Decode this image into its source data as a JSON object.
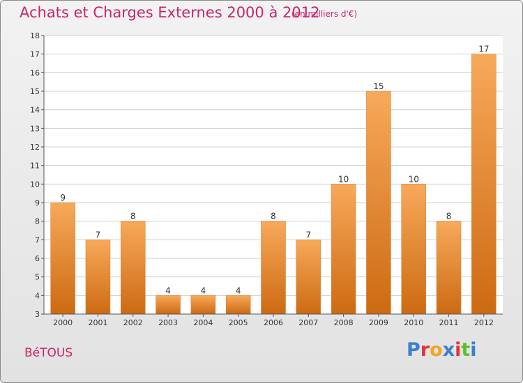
{
  "header": {
    "title": "Achats et Charges Externes 2000 à 2012",
    "subtitle": "(en milliers d'€)"
  },
  "footer": {
    "place": "BéTOUS",
    "brand": "Proxiti",
    "brand_colors": [
      "#3a7fd0",
      "#e5333b",
      "#f2a51f",
      "#3a7fd0",
      "#e5333b",
      "#5bbf2e",
      "#3a7fd0"
    ]
  },
  "colors": {
    "title": "#c9246d",
    "bar_top": "#f7a95a",
    "bar_bottom": "#cd6a12",
    "grid": "#cfcfcf"
  },
  "chart_data": {
    "type": "bar",
    "title": "Achats et Charges Externes 2000 à 2012",
    "subtitle": "(en milliers d'€)",
    "xlabel": "",
    "ylabel": "",
    "categories": [
      "2000",
      "2001",
      "2002",
      "2003",
      "2004",
      "2005",
      "2006",
      "2007",
      "2008",
      "2009",
      "2010",
      "2011",
      "2012"
    ],
    "values": [
      9,
      7,
      8,
      4,
      4,
      4,
      8,
      7,
      10,
      15,
      10,
      8,
      17
    ],
    "ylim": [
      3,
      18
    ],
    "yticks": [
      3,
      4,
      5,
      6,
      7,
      8,
      9,
      10,
      11,
      12,
      13,
      14,
      15,
      16,
      17,
      18
    ],
    "grid": true,
    "data_labels": true
  }
}
